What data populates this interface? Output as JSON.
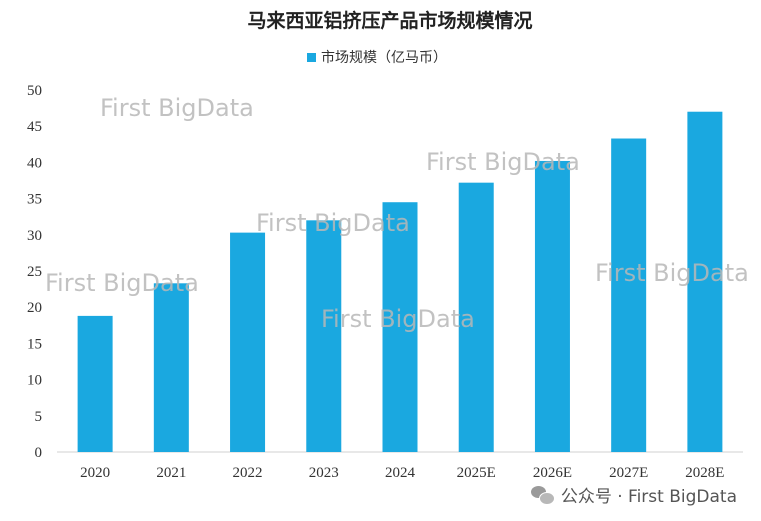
{
  "chart_data": {
    "type": "bar",
    "title": "马来西亚铝挤压产品市场规模情况",
    "categories": [
      "2020",
      "2021",
      "2022",
      "2023",
      "2024",
      "2025E",
      "2026E",
      "2027E",
      "2028E"
    ],
    "series": [
      {
        "name": "市场规模（亿马币）",
        "values": [
          18.8,
          23.3,
          30.3,
          32.0,
          34.5,
          37.2,
          40.2,
          43.3,
          47.0
        ],
        "color": "#1aa8e0"
      }
    ],
    "ylim": [
      0,
      50
    ],
    "yticks": [
      0,
      5,
      10,
      15,
      20,
      25,
      30,
      35,
      40,
      45,
      50
    ],
    "grid": false,
    "legend_position": "top-center"
  },
  "watermarks": [
    "First BigData",
    "First BigData",
    "First BigData",
    "First BigData",
    "First BigData",
    "First BigData"
  ],
  "footer": {
    "icon": "wechat-icon",
    "text": "公众号 · First BigData"
  }
}
